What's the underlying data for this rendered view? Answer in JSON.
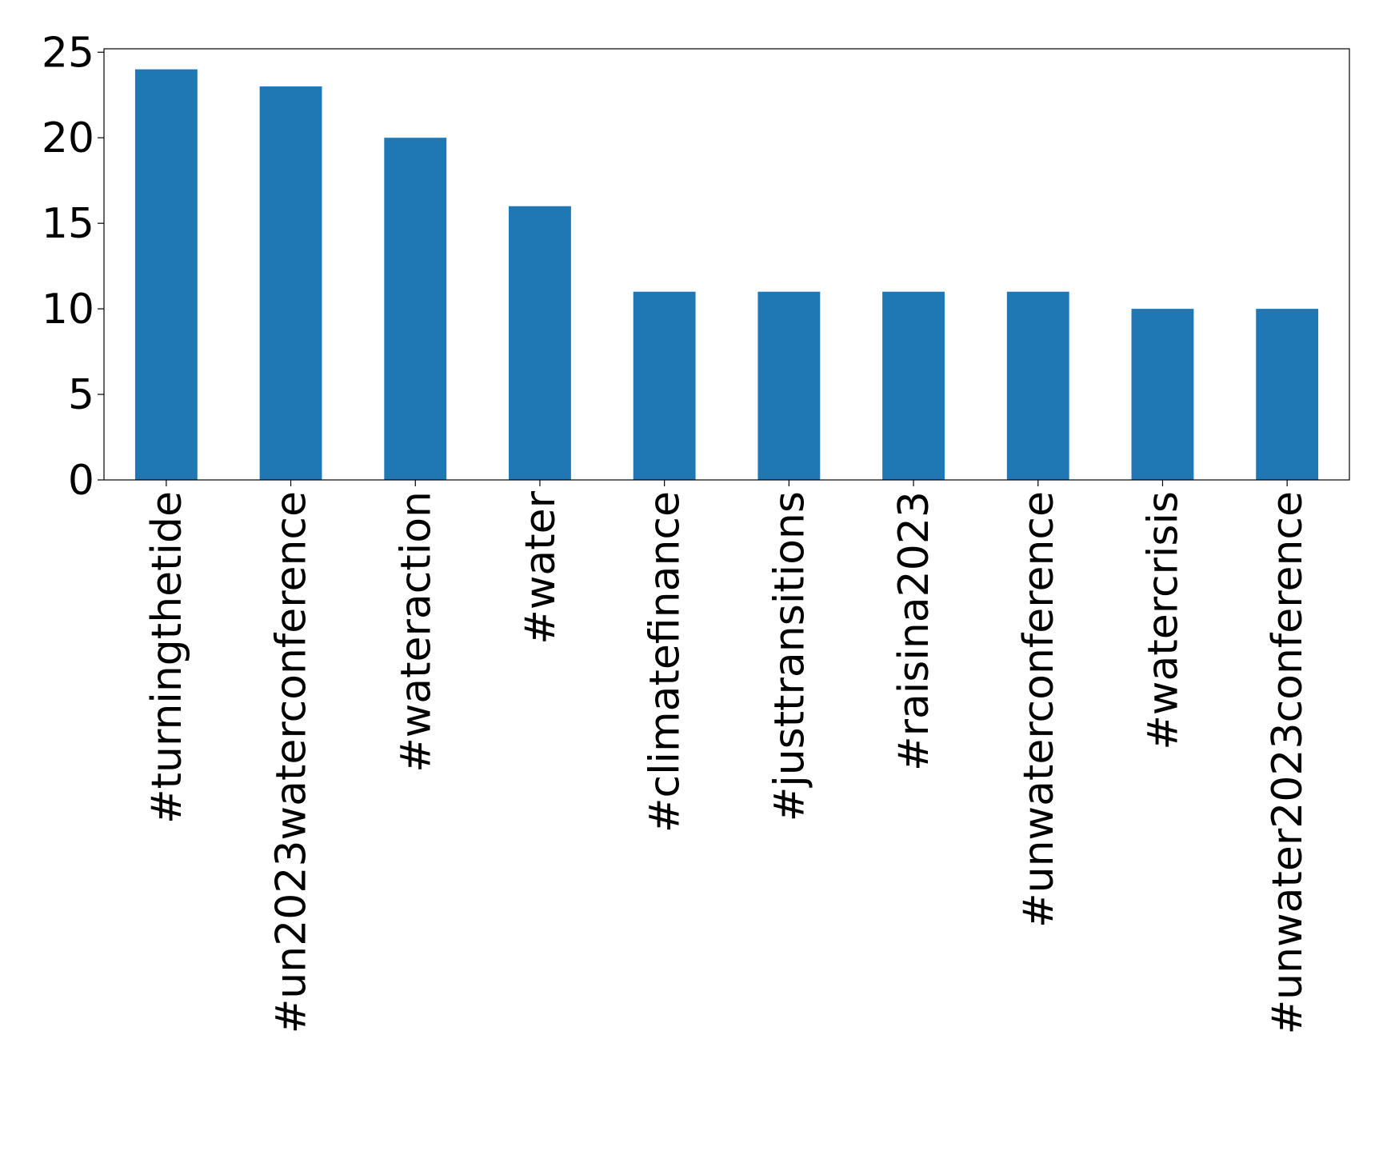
{
  "chart_data": {
    "type": "bar",
    "categories": [
      "#turningthetide",
      "#un2023waterconference",
      "#wateraction",
      "#water",
      "#climatefinance",
      "#justtransitions",
      "#raisina2023",
      "#unwaterconference",
      "#watercrisis",
      "#unwater2023conference"
    ],
    "values": [
      24,
      23,
      20,
      16,
      11,
      11,
      11,
      11,
      10,
      10
    ],
    "color": "#1f77b4",
    "ylim": [
      0,
      25.2
    ],
    "yticks": [
      0,
      5,
      10,
      15,
      20,
      25
    ],
    "grid": false
  }
}
